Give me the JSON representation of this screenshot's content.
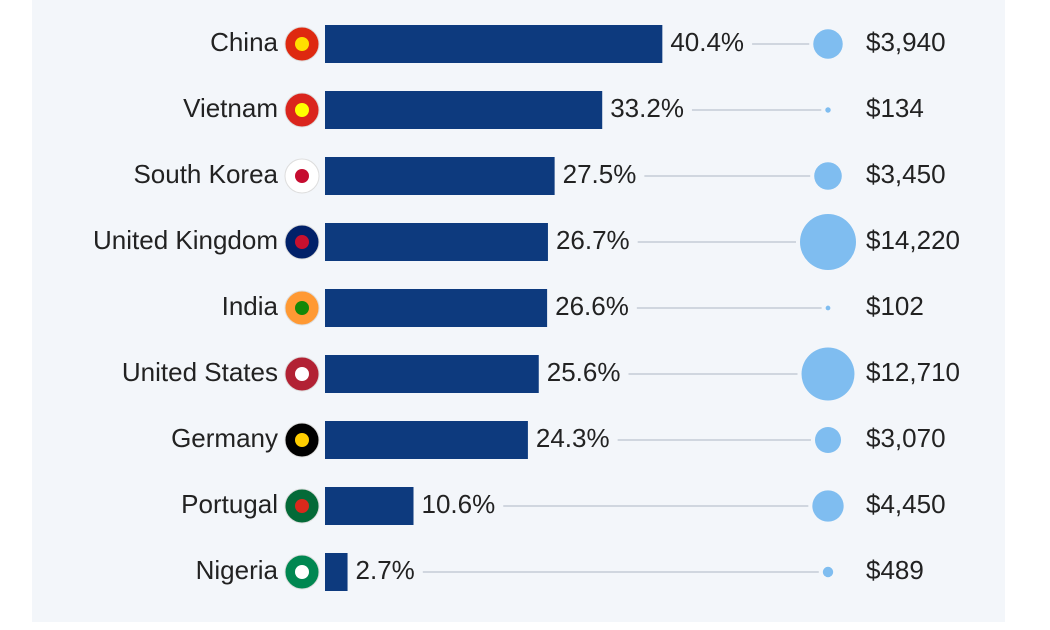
{
  "chart_data": {
    "type": "bar",
    "orientation": "horizontal",
    "categories": [
      "China",
      "Vietnam",
      "South Korea",
      "United Kingdom",
      "India",
      "United States",
      "Germany",
      "Portugal",
      "Nigeria"
    ],
    "series": [
      {
        "color": "#0d3a7e",
        "values": [
          40.4,
          33.2,
          27.5,
          26.7,
          26.6,
          25.6,
          24.3,
          10.6,
          2.7
        ],
        "value_labels": [
          "40.4%",
          "33.2%",
          "27.5%",
          "26.7%",
          "26.6%",
          "25.6%",
          "24.3%",
          "10.6%",
          "2.7%"
        ]
      },
      {
        "color": "#7fbdf0",
        "values": [
          3940,
          134,
          3450,
          14220,
          102,
          12710,
          3070,
          4450,
          489
        ],
        "value_labels": [
          "$3,940",
          "$134",
          "$3,450",
          "$14,220",
          "$102",
          "$12,710",
          "$3,070",
          "$4,450",
          "$489"
        ]
      }
    ]
  }
}
